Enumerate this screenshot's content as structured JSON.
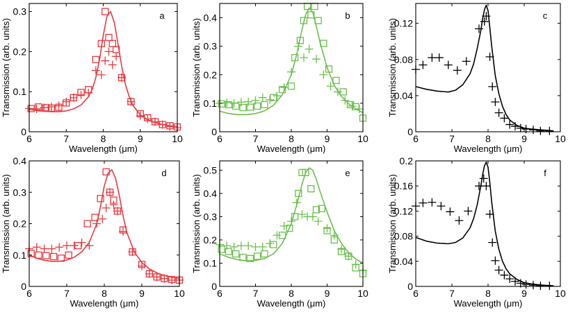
{
  "figure": {
    "xlabel": "Wavelength (μm)",
    "ylabel": "Transmission (arb. units)"
  },
  "colors": {
    "red": "#e8393f",
    "green": "#6abf4b",
    "black": "#000000"
  },
  "chart_data": [
    {
      "panel": "a",
      "type": "line",
      "color_key": "red",
      "title": "a",
      "xlabel": "Wavelength (μm)",
      "ylabel": "Transmission (arb. units)",
      "xlim": [
        6,
        10
      ],
      "ylim": [
        0,
        0.32
      ],
      "xticks": [
        6,
        7,
        8,
        9,
        10
      ],
      "xtick_labels": [
        "6",
        "7",
        "8",
        "9",
        "10"
      ],
      "yticks": [
        0,
        0.1,
        0.2,
        0.3
      ],
      "ytick_labels": [
        "0",
        "0.1",
        "0.2",
        "0.3"
      ],
      "series": [
        {
          "name": "model",
          "kind": "line",
          "x": [
            6,
            6.2,
            6.4,
            6.6,
            6.8,
            7.0,
            7.2,
            7.4,
            7.6,
            7.7,
            7.8,
            7.9,
            8.0,
            8.1,
            8.2,
            8.3,
            8.4,
            8.5,
            8.6,
            8.7,
            8.8,
            9.0,
            9.2,
            9.4,
            9.6,
            9.8,
            10.0
          ],
          "y": [
            0.056,
            0.053,
            0.051,
            0.05,
            0.05,
            0.052,
            0.057,
            0.067,
            0.087,
            0.105,
            0.135,
            0.18,
            0.24,
            0.288,
            0.3,
            0.272,
            0.218,
            0.163,
            0.118,
            0.088,
            0.066,
            0.042,
            0.03,
            0.023,
            0.018,
            0.015,
            0.013
          ]
        },
        {
          "name": "squares",
          "kind": "square",
          "x": [
            6.05,
            6.25,
            6.45,
            6.6,
            6.8,
            7.0,
            7.2,
            7.4,
            7.6,
            7.8,
            7.95,
            8.05,
            8.15,
            8.25,
            8.35,
            8.5,
            8.75,
            9.0,
            9.2,
            9.4,
            9.6,
            9.8,
            10.0
          ],
          "y": [
            0.058,
            0.062,
            0.06,
            0.059,
            0.061,
            0.072,
            0.085,
            0.098,
            0.105,
            0.18,
            0.22,
            0.3,
            0.235,
            0.22,
            0.205,
            0.135,
            0.075,
            0.045,
            0.035,
            0.025,
            0.018,
            0.015,
            0.012
          ]
        },
        {
          "name": "crosses",
          "kind": "cross",
          "x": [
            6.0,
            6.2,
            6.4,
            6.6,
            6.8,
            7.0,
            7.2,
            7.4,
            7.6,
            7.8,
            7.95,
            8.05,
            8.15,
            8.25,
            8.35,
            8.5,
            8.75,
            9.0,
            9.2,
            9.4,
            9.6,
            9.8,
            10.0
          ],
          "y": [
            0.058,
            0.057,
            0.06,
            0.062,
            0.065,
            0.075,
            0.085,
            0.092,
            0.097,
            0.153,
            0.142,
            0.177,
            0.2,
            0.167,
            0.188,
            0.135,
            0.075,
            0.04,
            0.032,
            0.025,
            0.018,
            0.013,
            0.01
          ]
        }
      ]
    },
    {
      "panel": "b",
      "type": "line",
      "color_key": "green",
      "title": "b",
      "xlabel": "Wavelength (μm)",
      "ylabel": "Transmission (arb. units)",
      "xlim": [
        6,
        10
      ],
      "ylim": [
        0,
        0.45
      ],
      "xticks": [
        6,
        7,
        8,
        9,
        10
      ],
      "xtick_labels": [
        "6",
        "7",
        "8",
        "9",
        "10"
      ],
      "yticks": [
        0,
        0.1,
        0.2,
        0.3,
        0.4
      ],
      "ytick_labels": [
        "0",
        "0.1",
        "0.2",
        "0.3",
        "0.4"
      ],
      "series": [
        {
          "name": "model",
          "kind": "line",
          "x": [
            6,
            6.25,
            6.5,
            6.75,
            7.0,
            7.25,
            7.5,
            7.75,
            8.0,
            8.15,
            8.3,
            8.4,
            8.5,
            8.6,
            8.7,
            8.8,
            9.0,
            9.2,
            9.4,
            9.6,
            9.8,
            10.0
          ],
          "y": [
            0.072,
            0.064,
            0.06,
            0.06,
            0.064,
            0.073,
            0.093,
            0.13,
            0.2,
            0.27,
            0.36,
            0.41,
            0.435,
            0.418,
            0.37,
            0.315,
            0.225,
            0.163,
            0.124,
            0.098,
            0.08,
            0.067
          ]
        },
        {
          "name": "squares",
          "kind": "square",
          "x": [
            6.05,
            6.25,
            6.45,
            6.65,
            6.85,
            7.05,
            7.25,
            7.5,
            7.75,
            8.0,
            8.1,
            8.25,
            8.35,
            8.45,
            8.55,
            8.65,
            8.75,
            8.9,
            9.05,
            9.25,
            9.45,
            9.65,
            9.8,
            10.0
          ],
          "y": [
            0.098,
            0.095,
            0.09,
            0.085,
            0.086,
            0.09,
            0.095,
            0.12,
            0.148,
            0.16,
            0.26,
            0.32,
            0.39,
            0.44,
            0.41,
            0.44,
            0.39,
            0.31,
            0.22,
            0.18,
            0.14,
            0.095,
            0.088,
            0.048
          ]
        },
        {
          "name": "crosses",
          "kind": "cross",
          "x": [
            6.0,
            6.2,
            6.4,
            6.6,
            6.8,
            7.0,
            7.2,
            7.4,
            7.6,
            7.8,
            8.0,
            8.2,
            8.35,
            8.5,
            8.7,
            8.9,
            9.1,
            9.3,
            9.5,
            9.7,
            9.9
          ],
          "y": [
            0.1,
            0.102,
            0.1,
            0.104,
            0.105,
            0.11,
            0.12,
            0.112,
            0.126,
            0.155,
            0.21,
            0.3,
            0.26,
            0.29,
            0.255,
            0.2,
            0.16,
            0.14,
            0.11,
            0.09,
            0.08
          ]
        }
      ]
    },
    {
      "panel": "c",
      "type": "line",
      "color_key": "black",
      "title": "c",
      "xlabel": "Wavelength (μm)",
      "ylabel": "Transmission (arb. units)",
      "xlim": [
        6,
        10
      ],
      "ylim": [
        0,
        0.142
      ],
      "xticks": [
        6,
        7,
        8,
        9,
        10
      ],
      "xtick_labels": [
        "6",
        "7",
        "8",
        "9",
        "10"
      ],
      "yticks": [
        0,
        0.04,
        0.08,
        0.12
      ],
      "ytick_labels": [
        "0",
        "0.04",
        "0.08",
        "0.12"
      ],
      "series": [
        {
          "name": "model",
          "kind": "line",
          "x": [
            6,
            6.3,
            6.6,
            6.9,
            7.1,
            7.3,
            7.5,
            7.6,
            7.7,
            7.8,
            7.85,
            7.9,
            7.95,
            8.0,
            8.05,
            8.1,
            8.2,
            8.3,
            8.4,
            8.5,
            8.6,
            8.8,
            9.0,
            9.2,
            9.5,
            9.8
          ],
          "y": [
            0.05,
            0.047,
            0.045,
            0.044,
            0.046,
            0.052,
            0.064,
            0.075,
            0.092,
            0.112,
            0.125,
            0.135,
            0.14,
            0.134,
            0.115,
            0.095,
            0.062,
            0.042,
            0.028,
            0.019,
            0.013,
            0.007,
            0.004,
            0.003,
            0.002,
            0.001
          ]
        },
        {
          "name": "crosses",
          "kind": "cross",
          "x": [
            6.0,
            6.2,
            6.45,
            6.65,
            6.9,
            7.15,
            7.4,
            7.75,
            7.9,
            7.95,
            8.05,
            8.12,
            8.2,
            8.3,
            8.45,
            8.6,
            8.75,
            8.9,
            9.05,
            9.25,
            9.45,
            9.7
          ],
          "y": [
            0.069,
            0.074,
            0.082,
            0.082,
            0.074,
            0.068,
            0.078,
            0.114,
            0.122,
            0.128,
            0.083,
            0.05,
            0.033,
            0.021,
            0.015,
            0.008,
            0.006,
            0.004,
            0.003,
            0.002,
            0.001,
            0.001
          ]
        }
      ]
    },
    {
      "panel": "d",
      "type": "line",
      "color_key": "red",
      "title": "d",
      "xlabel": "Wavelength (μm)",
      "ylabel": "Transmission (arb. units)",
      "xlim": [
        6,
        10
      ],
      "ylim": [
        0,
        0.4
      ],
      "xticks": [
        6,
        7,
        8,
        9,
        10
      ],
      "xtick_labels": [
        "6",
        "7",
        "8",
        "9",
        "10"
      ],
      "yticks": [
        0,
        0.1,
        0.2,
        0.3,
        0.4
      ],
      "ytick_labels": [
        "0",
        "0.1",
        "0.2",
        "0.3",
        "0.4"
      ],
      "series": [
        {
          "name": "model",
          "kind": "line",
          "x": [
            6,
            6.2,
            6.4,
            6.6,
            6.8,
            7.0,
            7.2,
            7.4,
            7.6,
            7.8,
            7.9,
            8.0,
            8.1,
            8.2,
            8.3,
            8.4,
            8.5,
            8.6,
            8.8,
            9.0,
            9.2,
            9.4,
            9.6,
            9.8,
            10.0
          ],
          "y": [
            0.1,
            0.09,
            0.083,
            0.08,
            0.08,
            0.084,
            0.093,
            0.11,
            0.14,
            0.2,
            0.255,
            0.32,
            0.36,
            0.372,
            0.345,
            0.29,
            0.225,
            0.172,
            0.11,
            0.076,
            0.056,
            0.043,
            0.035,
            0.029,
            0.025
          ]
        },
        {
          "name": "squares",
          "kind": "square",
          "x": [
            6.05,
            6.25,
            6.45,
            6.65,
            6.85,
            7.05,
            7.3,
            7.55,
            7.75,
            7.9,
            8.05,
            8.15,
            8.25,
            8.35,
            8.5,
            8.75,
            9.0,
            9.2,
            9.4,
            9.6,
            9.8,
            10.0
          ],
          "y": [
            0.105,
            0.1,
            0.098,
            0.095,
            0.09,
            0.1,
            0.13,
            0.2,
            0.22,
            0.28,
            0.365,
            0.3,
            0.275,
            0.24,
            0.18,
            0.11,
            0.07,
            0.04,
            0.03,
            0.025,
            0.022,
            0.02
          ]
        },
        {
          "name": "crosses",
          "kind": "cross",
          "x": [
            6.0,
            6.2,
            6.4,
            6.6,
            6.8,
            7.0,
            7.2,
            7.4,
            7.6,
            7.8,
            7.95,
            8.05,
            8.15,
            8.25,
            8.35,
            8.5,
            8.75,
            9.0,
            9.2,
            9.4,
            9.6,
            9.8,
            10.0
          ],
          "y": [
            0.12,
            0.125,
            0.12,
            0.12,
            0.125,
            0.13,
            0.13,
            0.14,
            0.13,
            0.2,
            0.215,
            0.25,
            0.3,
            0.26,
            0.24,
            0.175,
            0.11,
            0.065,
            0.04,
            0.03,
            0.025,
            0.02,
            0.02
          ]
        }
      ]
    },
    {
      "panel": "e",
      "type": "line",
      "color_key": "green",
      "title": "e",
      "xlabel": "Wavelength (μm)",
      "ylabel": "Transmission (arb. units)",
      "xlim": [
        6,
        10
      ],
      "ylim": [
        0,
        0.54
      ],
      "xticks": [
        6,
        7,
        8,
        9,
        10
      ],
      "xtick_labels": [
        "6",
        "7",
        "8",
        "9",
        "10"
      ],
      "yticks": [
        0,
        0.1,
        0.2,
        0.3,
        0.4,
        0.5
      ],
      "ytick_labels": [
        "0",
        "0.1",
        "0.2",
        "0.3",
        "0.4",
        "0.5"
      ],
      "series": [
        {
          "name": "model",
          "kind": "line",
          "x": [
            6,
            6.25,
            6.5,
            6.75,
            7.0,
            7.25,
            7.5,
            7.75,
            8.0,
            8.15,
            8.3,
            8.4,
            8.5,
            8.6,
            8.7,
            8.8,
            9.0,
            9.2,
            9.4,
            9.6,
            9.8,
            10.0
          ],
          "y": [
            0.14,
            0.125,
            0.115,
            0.11,
            0.112,
            0.12,
            0.14,
            0.185,
            0.27,
            0.35,
            0.44,
            0.49,
            0.51,
            0.5,
            0.46,
            0.41,
            0.32,
            0.24,
            0.185,
            0.145,
            0.118,
            0.1
          ]
        },
        {
          "name": "squares",
          "kind": "square",
          "x": [
            6.05,
            6.25,
            6.45,
            6.65,
            6.85,
            7.05,
            7.25,
            7.5,
            7.75,
            7.95,
            8.1,
            8.2,
            8.3,
            8.4,
            8.55,
            8.7,
            8.85,
            9.0,
            9.2,
            9.4,
            9.6,
            9.8,
            10.0
          ],
          "y": [
            0.16,
            0.15,
            0.14,
            0.125,
            0.12,
            0.13,
            0.14,
            0.18,
            0.22,
            0.25,
            0.3,
            0.4,
            0.49,
            0.49,
            0.42,
            0.33,
            0.335,
            0.24,
            0.2,
            0.15,
            0.13,
            0.08,
            0.055
          ]
        },
        {
          "name": "crosses",
          "kind": "cross",
          "x": [
            6.0,
            6.2,
            6.4,
            6.6,
            6.8,
            7.0,
            7.2,
            7.4,
            7.6,
            7.8,
            8.0,
            8.15,
            8.3,
            8.45,
            8.6,
            8.75,
            9.0,
            9.2,
            9.4,
            9.6,
            9.8,
            10.0
          ],
          "y": [
            0.18,
            0.175,
            0.17,
            0.175,
            0.175,
            0.17,
            0.17,
            0.185,
            0.22,
            0.26,
            0.28,
            0.36,
            0.31,
            0.3,
            0.3,
            0.28,
            0.25,
            0.22,
            0.16,
            0.13,
            0.095,
            0.07
          ]
        }
      ]
    },
    {
      "panel": "f",
      "type": "line",
      "color_key": "black",
      "title": "f",
      "xlabel": "Wavelength (μm)",
      "ylabel": "Transmission (arb. units)",
      "xlim": [
        6,
        10
      ],
      "ylim": [
        0,
        0.2
      ],
      "xticks": [
        6,
        7,
        8,
        9,
        10
      ],
      "xtick_labels": [
        "6",
        "7",
        "8",
        "9",
        "10"
      ],
      "yticks": [
        0,
        0.04,
        0.08,
        0.12,
        0.16,
        0.2
      ],
      "ytick_labels": [
        "0",
        "0.04",
        "0.08",
        "0.12",
        "0.16",
        "0.2"
      ],
      "series": [
        {
          "name": "model",
          "kind": "line",
          "x": [
            6,
            6.3,
            6.6,
            6.9,
            7.1,
            7.3,
            7.5,
            7.6,
            7.7,
            7.8,
            7.85,
            7.9,
            7.95,
            8.0,
            8.05,
            8.1,
            8.2,
            8.3,
            8.4,
            8.5,
            8.6,
            8.8,
            9.0,
            9.2,
            9.5,
            9.8
          ],
          "y": [
            0.078,
            0.072,
            0.069,
            0.068,
            0.07,
            0.077,
            0.093,
            0.108,
            0.13,
            0.16,
            0.178,
            0.192,
            0.198,
            0.19,
            0.165,
            0.135,
            0.088,
            0.059,
            0.04,
            0.028,
            0.02,
            0.011,
            0.006,
            0.004,
            0.002,
            0.001
          ]
        },
        {
          "name": "crosses",
          "kind": "cross",
          "x": [
            6.0,
            6.2,
            6.45,
            6.7,
            6.95,
            7.2,
            7.45,
            7.75,
            7.88,
            7.95,
            8.05,
            8.12,
            8.2,
            8.3,
            8.45,
            8.6,
            8.75,
            8.9,
            9.05,
            9.25,
            9.45,
            9.7
          ],
          "y": [
            0.128,
            0.133,
            0.134,
            0.128,
            0.119,
            0.105,
            0.12,
            0.16,
            0.172,
            0.16,
            0.115,
            0.07,
            0.041,
            0.026,
            0.018,
            0.012,
            0.008,
            0.005,
            0.003,
            0.002,
            0.001,
            0.001
          ]
        }
      ]
    }
  ]
}
